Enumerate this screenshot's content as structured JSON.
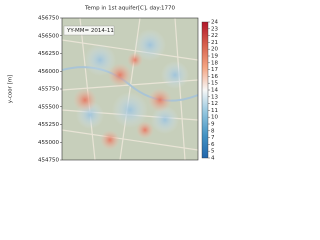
{
  "chart_data": {
    "type": "map",
    "title": "Temp in 1st aquifer[C], day:1770",
    "ylabel": "y-coor [m]",
    "annotation": "YY-MM= 2014-11",
    "ylim": [
      454750,
      456750
    ],
    "yticks": [
      454750,
      455000,
      455250,
      455500,
      455750,
      456000,
      456250,
      456500,
      456750
    ],
    "colorbar": {
      "colormap": "RdBu_r",
      "lim": [
        4,
        24
      ],
      "ticks": [
        4,
        5,
        6,
        7,
        8,
        9,
        10,
        11,
        12,
        13,
        14,
        15,
        16,
        17,
        18,
        19,
        20,
        21,
        22,
        23,
        24
      ]
    }
  }
}
